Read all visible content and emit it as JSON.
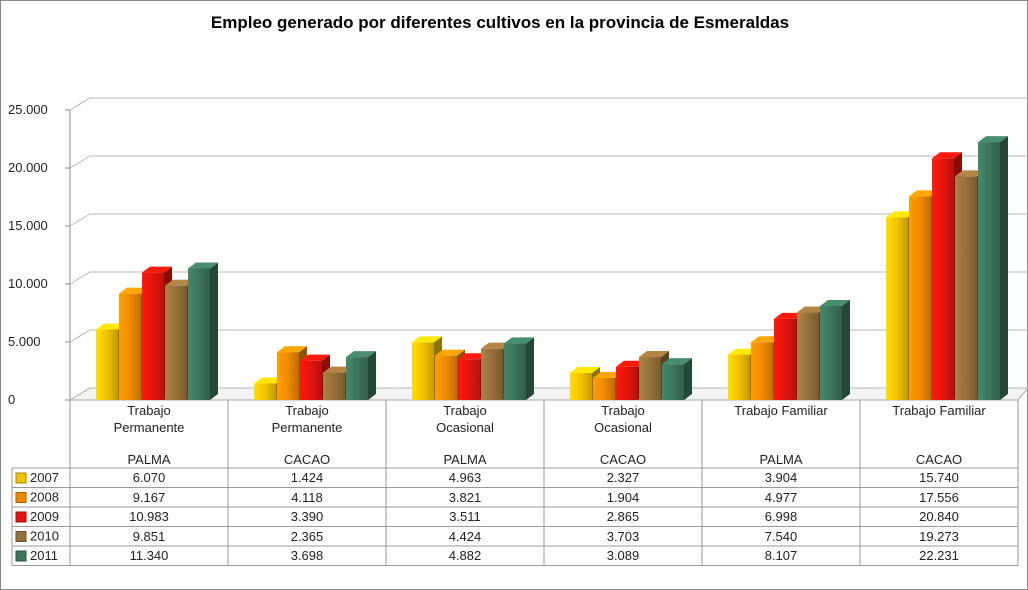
{
  "chart_data": {
    "type": "bar3d",
    "title": "Empleo generado por diferentes cultivos en la provincia de Esmeraldas",
    "categories": [
      [
        "Trabajo Permanente",
        "PALMA"
      ],
      [
        "Trabajo Permanente",
        "CACAO"
      ],
      [
        "Trabajo Ocasional",
        "PALMA"
      ],
      [
        "Trabajo Ocasional",
        "CACAO"
      ],
      [
        "Trabajo Familiar",
        "PALMA"
      ],
      [
        "Trabajo Familiar",
        "CACAO"
      ]
    ],
    "series": [
      {
        "name": "2007",
        "color": "#f2c200",
        "values": [
          6070,
          1424,
          4963,
          2327,
          3904,
          15740
        ],
        "value_labels": [
          "6.070",
          "1.424",
          "4.963",
          "2.327",
          "3.904",
          "15.740"
        ]
      },
      {
        "name": "2008",
        "color": "#ef8a00",
        "values": [
          9167,
          4118,
          3821,
          1904,
          4977,
          17556
        ],
        "value_labels": [
          "9.167",
          "4.118",
          "3.821",
          "1.904",
          "4.977",
          "17.556"
        ]
      },
      {
        "name": "2009",
        "color": "#e3150c",
        "values": [
          10983,
          3390,
          3511,
          2865,
          6998,
          20840
        ],
        "value_labels": [
          "10.983",
          "3.390",
          "3.511",
          "2.865",
          "6.998",
          "20.840"
        ]
      },
      {
        "name": "2010",
        "color": "#96703a",
        "values": [
          9851,
          2365,
          4424,
          3703,
          7540,
          19273
        ],
        "value_labels": [
          "9.851",
          "2.365",
          "4.424",
          "3.703",
          "7.540",
          "19.273"
        ]
      },
      {
        "name": "2011",
        "color": "#3c765c",
        "values": [
          11340,
          3698,
          4882,
          3089,
          8107,
          22231
        ],
        "value_labels": [
          "11.340",
          "3.698",
          "4.882",
          "3.089",
          "8.107",
          "22.231"
        ]
      }
    ],
    "ylim": [
      0,
      25000
    ],
    "yticks": [
      0,
      {
        "value": 5000,
        "label": "5.000"
      },
      {
        "value": 10000,
        "label": "10.000"
      },
      {
        "value": 15000,
        "label": "15.000"
      },
      {
        "value": 20000,
        "label": "20.000"
      },
      {
        "value": 25000,
        "label": "25.000"
      }
    ],
    "grid": true
  }
}
